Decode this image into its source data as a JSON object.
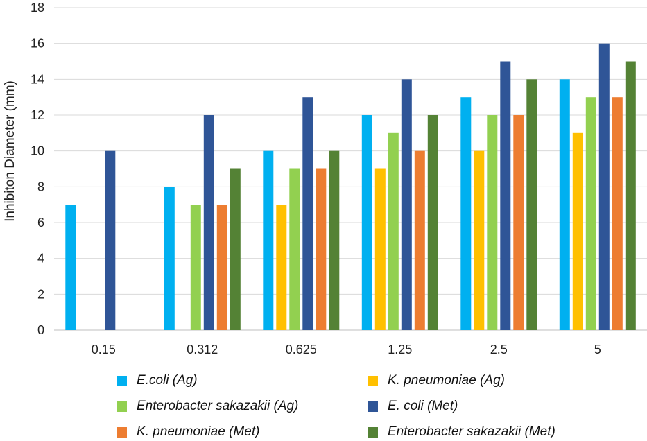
{
  "chart_data": {
    "type": "bar",
    "categories": [
      "0.15",
      "0.312",
      "0.625",
      "1.25",
      "2.5",
      "5"
    ],
    "ylabel": "Inhibiton Diameter (mm)",
    "ylim": [
      0,
      18
    ],
    "yticks": [
      "0",
      "2",
      "4",
      "6",
      "8",
      "10",
      "12",
      "14",
      "16",
      "18"
    ],
    "grid": true,
    "legend_position": "bottom",
    "series": [
      {
        "name": "E.coli (Ag)",
        "color": "#00B0F0",
        "values": [
          7,
          8,
          10,
          12,
          13,
          14
        ]
      },
      {
        "name": "K. pneumoniae (Ag)",
        "color": "#FFC000",
        "values": [
          0,
          0,
          7,
          9,
          10,
          11
        ]
      },
      {
        "name": "Enterobacter sakazakii (Ag)",
        "color": "#92D050",
        "values": [
          0,
          7,
          9,
          11,
          12,
          13
        ]
      },
      {
        "name": "E. coli (Met)",
        "color": "#2F5597",
        "values": [
          10,
          12,
          13,
          14,
          15,
          16
        ]
      },
      {
        "name": "K. pneumoniae (Met)",
        "color": "#ED7D31",
        "values": [
          0,
          7,
          9,
          10,
          12,
          13
        ]
      },
      {
        "name": "Enterobacter sakazakii (Met)",
        "color": "#548235",
        "values": [
          0,
          9,
          10,
          12,
          14,
          15
        ]
      }
    ],
    "legend_order": [
      0,
      1,
      2,
      3,
      4,
      5
    ]
  }
}
